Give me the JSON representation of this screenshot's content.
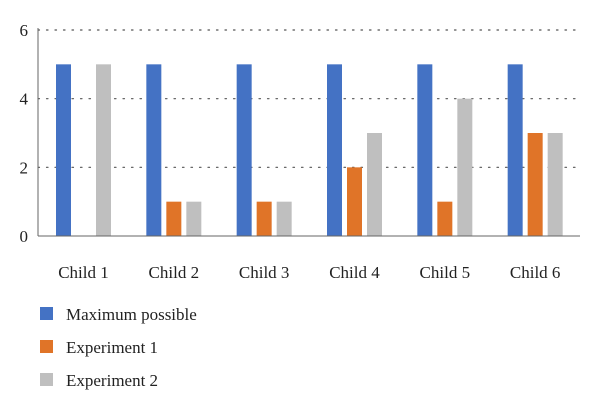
{
  "chart_data": {
    "type": "bar",
    "categories": [
      "Child 1",
      "Child 2",
      "Child 3",
      "Child 4",
      "Child 5",
      "Child 6"
    ],
    "series": [
      {
        "name": "Maximum possible",
        "color": "#4472C4",
        "values": [
          5,
          5,
          5,
          5,
          5,
          5
        ]
      },
      {
        "name": "Experiment 1",
        "color": "#E07428",
        "values": [
          0,
          1,
          1,
          2,
          1,
          3
        ]
      },
      {
        "name": "Experiment 2",
        "color": "#BFBFBF",
        "values": [
          5,
          1,
          1,
          3,
          4,
          3
        ]
      }
    ],
    "yticks": [
      "0",
      "2",
      "4",
      "6"
    ],
    "ylim": [
      0,
      6
    ],
    "grid": "dotted horizontal",
    "legend_position": "bottom-left"
  }
}
